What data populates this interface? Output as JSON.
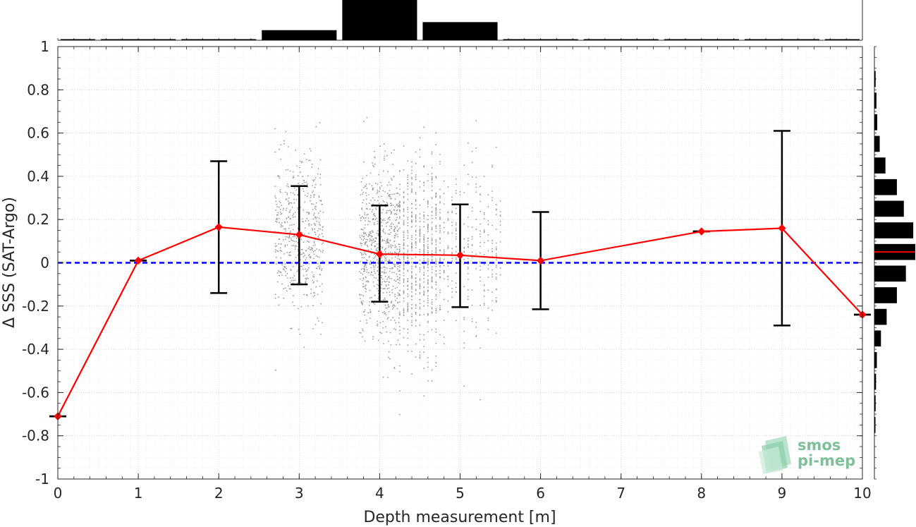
{
  "chart_data": {
    "type": "line",
    "xlabel": "Depth measurement [m]",
    "ylabel": "Δ SSS (SAT-Argo)",
    "xlim": [
      0,
      10
    ],
    "ylim": [
      -1,
      1
    ],
    "x_ticks": [
      "0",
      "1",
      "2",
      "3",
      "4",
      "5",
      "6",
      "7",
      "8",
      "9",
      "10"
    ],
    "y_ticks": [
      "-1",
      "-0.8",
      "-0.6",
      "-0.4",
      "-0.2",
      "0",
      "0.2",
      "0.4",
      "0.6",
      "0.8",
      "1"
    ],
    "grid": true,
    "zero_line": {
      "y": 0,
      "color": "#0000ff",
      "style": "dashed"
    },
    "mean_series": {
      "color": "#ff0000",
      "x": [
        0,
        1,
        2,
        3,
        4,
        5,
        6,
        8,
        9,
        10
      ],
      "y": [
        -0.71,
        0.01,
        0.165,
        0.13,
        0.04,
        0.035,
        0.01,
        0.145,
        0.16,
        -0.24
      ]
    },
    "error_bars": [
      {
        "x": 0,
        "low": -0.71,
        "high": -0.71
      },
      {
        "x": 1,
        "low": 0.01,
        "high": 0.01
      },
      {
        "x": 2,
        "low": -0.14,
        "high": 0.47
      },
      {
        "x": 3,
        "low": -0.1,
        "high": 0.355
      },
      {
        "x": 4,
        "low": -0.18,
        "high": 0.265
      },
      {
        "x": 5,
        "low": -0.205,
        "high": 0.27
      },
      {
        "x": 6,
        "low": -0.215,
        "high": 0.235
      },
      {
        "x": 8,
        "low": 0.145,
        "high": 0.145
      },
      {
        "x": 9,
        "low": -0.29,
        "high": 0.61
      },
      {
        "x": 10,
        "low": -0.24,
        "high": -0.24
      }
    ],
    "scatter_clusters": [
      {
        "x_min": 2.7,
        "x_max": 3.3,
        "y_mean": 0.13,
        "y_sd": 0.18,
        "count": 500
      },
      {
        "x_min": 3.75,
        "x_max": 4.25,
        "y_mean": 0.04,
        "y_sd": 0.2,
        "count": 700
      },
      {
        "x_min": 4.25,
        "x_max": 4.75,
        "y_mean": 0.03,
        "y_sd": 0.22,
        "count": 700
      },
      {
        "x_min": 4.75,
        "x_max": 5.5,
        "y_mean": 0.03,
        "y_sd": 0.2,
        "count": 300
      }
    ],
    "scatter_color": "#999999",
    "top_histogram": {
      "bin_edges": [
        0,
        0.5,
        1.5,
        2.5,
        3.5,
        4.5,
        5.5,
        6.5,
        7.5,
        8.5,
        9.5,
        10
      ],
      "relative_counts": [
        0.02,
        0.02,
        0.02,
        0.25,
        1.0,
        0.45,
        0.01,
        0.005,
        0.01,
        0.01,
        0.005
      ]
    },
    "side_histogram": {
      "bin_edges": [
        -0.8,
        -0.7,
        -0.6,
        -0.5,
        -0.4,
        -0.3,
        -0.2,
        -0.1,
        0,
        0.1,
        0.2,
        0.3,
        0.4,
        0.5,
        0.6,
        0.7,
        0.8,
        0.9
      ],
      "relative_counts": [
        0.02,
        0.03,
        0.04,
        0.06,
        0.16,
        0.3,
        0.55,
        0.77,
        1.0,
        0.95,
        0.72,
        0.55,
        0.27,
        0.13,
        0.07,
        0.05,
        0.03
      ],
      "mean_line": {
        "y": 0.05,
        "color": "#ff0000"
      }
    }
  },
  "logo": {
    "line1": "smos",
    "line2": "pi-mep"
  }
}
